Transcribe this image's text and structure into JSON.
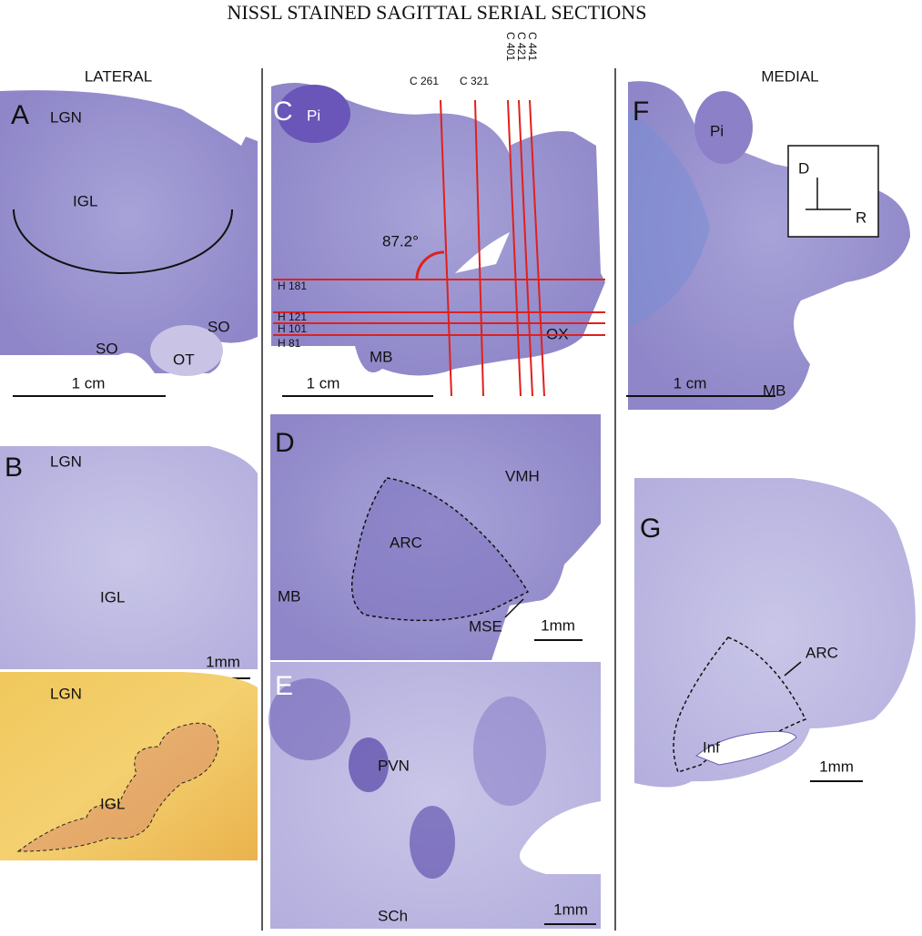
{
  "title": "NISSL STAINED SAGITTAL SERIAL SECTIONS",
  "columns": {
    "lateral": "LATERAL",
    "medial": "MEDIAL"
  },
  "panels": [
    {
      "letter": "A",
      "labels": [
        "LGN",
        "IGL",
        "SO",
        "SO",
        "OT"
      ],
      "scale_bar": "1 cm"
    },
    {
      "letter": "B",
      "labels": [
        "LGN",
        "IGL",
        "LGN",
        "IGL"
      ],
      "scale_bar": "1mm"
    },
    {
      "letter": "C",
      "labels": [
        "Pi",
        "MB",
        "OX"
      ],
      "coronal_lines": [
        "C 261",
        "C 321",
        "C 401",
        "C 421",
        "C 441"
      ],
      "horizontal_lines": [
        "H 181",
        "H 121",
        "H 101",
        "H 81"
      ],
      "angle": "87.2°",
      "scale_bar": "1 cm"
    },
    {
      "letter": "D",
      "labels": [
        "VMH",
        "ARC",
        "MB",
        "MSE"
      ],
      "scale_bar": "1mm"
    },
    {
      "letter": "E",
      "labels": [
        "PVN",
        "SCh"
      ],
      "scale_bar": "1mm"
    },
    {
      "letter": "F",
      "labels": [
        "Pi",
        "MB"
      ],
      "orientation": [
        "D",
        "R"
      ],
      "scale_bar": "1 cm"
    },
    {
      "letter": "G",
      "labels": [
        "ARC",
        "Inf"
      ],
      "scale_bar": "1mm"
    }
  ]
}
